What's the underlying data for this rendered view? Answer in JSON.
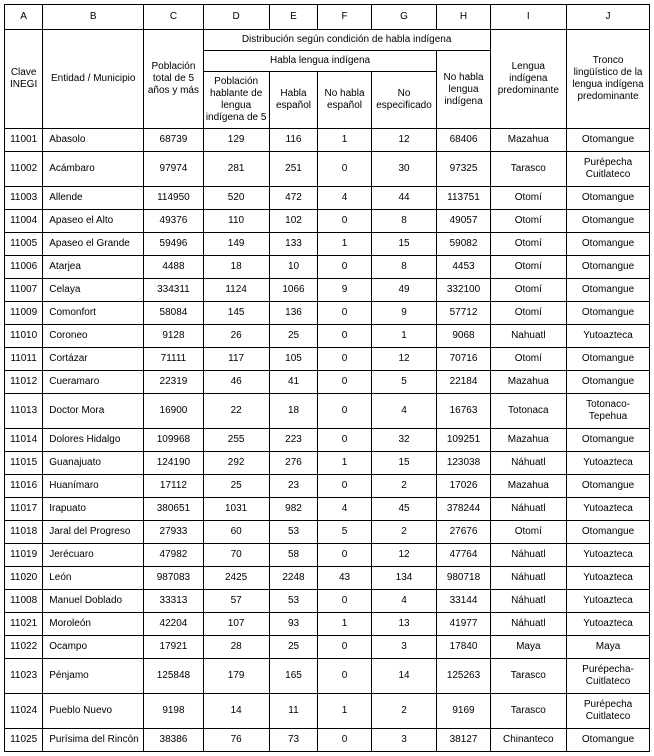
{
  "header": {
    "letters": [
      "A",
      "B",
      "C",
      "D",
      "E",
      "F",
      "G",
      "H",
      "I",
      "J"
    ],
    "labels": {
      "A": "Clave INEGI",
      "B": "Entidad / Municipio",
      "C": "Población total de 5 años y más",
      "group_DH": "Distribución según condición de habla indígena",
      "group_DG": "Habla lengua indígena",
      "D": "Población hablante de lengua indígena de 5",
      "E": "Habla español",
      "F": "No habla español",
      "G": "No especificado",
      "H": "No habla lengua indígena",
      "I": "Lengua indígena predominante",
      "J": "Tronco lingüístico de la lengua indígena predominante"
    }
  },
  "rows": [
    {
      "A": "11001",
      "B": "Abasolo",
      "C": "68739",
      "D": "129",
      "E": "116",
      "F": "1",
      "G": "12",
      "H": "68406",
      "I": "Mazahua",
      "J": "Otomangue"
    },
    {
      "A": "11002",
      "B": "Acámbaro",
      "C": "97974",
      "D": "281",
      "E": "251",
      "F": "0",
      "G": "30",
      "H": "97325",
      "I": "Tarasco",
      "J": "Purépecha Cuitlateco"
    },
    {
      "A": "11003",
      "B": "Allende",
      "C": "114950",
      "D": "520",
      "E": "472",
      "F": "4",
      "G": "44",
      "H": "113751",
      "I": "Otomí",
      "J": "Otomangue"
    },
    {
      "A": "11004",
      "B": "Apaseo el Alto",
      "C": "49376",
      "D": "110",
      "E": "102",
      "F": "0",
      "G": "8",
      "H": "49057",
      "I": "Otomí",
      "J": "Otomangue"
    },
    {
      "A": "11005",
      "B": "Apaseo el Grande",
      "C": "59496",
      "D": "149",
      "E": "133",
      "F": "1",
      "G": "15",
      "H": "59082",
      "I": "Otomí",
      "J": "Otomangue"
    },
    {
      "A": "11006",
      "B": "Atarjea",
      "C": "4488",
      "D": "18",
      "E": "10",
      "F": "0",
      "G": "8",
      "H": "4453",
      "I": "Otomí",
      "J": "Otomangue"
    },
    {
      "A": "11007",
      "B": "Celaya",
      "C": "334311",
      "D": "1124",
      "E": "1066",
      "F": "9",
      "G": "49",
      "H": "332100",
      "I": "Otomí",
      "J": "Otomangue"
    },
    {
      "A": "11009",
      "B": "Comonfort",
      "C": "58084",
      "D": "145",
      "E": "136",
      "F": "0",
      "G": "9",
      "H": "57712",
      "I": "Otomí",
      "J": "Otomangue"
    },
    {
      "A": "11010",
      "B": "Coroneo",
      "C": "9128",
      "D": "26",
      "E": "25",
      "F": "0",
      "G": "1",
      "H": "9068",
      "I": "Nahuatl",
      "J": "Yutoazteca"
    },
    {
      "A": "11011",
      "B": "Cortázar",
      "C": "71111",
      "D": "117",
      "E": "105",
      "F": "0",
      "G": "12",
      "H": "70716",
      "I": "Otomí",
      "J": "Otomangue"
    },
    {
      "A": "11012",
      "B": "Cueramaro",
      "C": "22319",
      "D": "46",
      "E": "41",
      "F": "0",
      "G": "5",
      "H": "22184",
      "I": "Mazahua",
      "J": "Otomangue"
    },
    {
      "A": "11013",
      "B": "Doctor Mora",
      "C": "16900",
      "D": "22",
      "E": "18",
      "F": "0",
      "G": "4",
      "H": "16763",
      "I": "Totonaca",
      "J": "Totonaco-Tepehua"
    },
    {
      "A": "11014",
      "B": "Dolores Hidalgo",
      "C": "109968",
      "D": "255",
      "E": "223",
      "F": "0",
      "G": "32",
      "H": "109251",
      "I": "Mazahua",
      "J": "Otomangue"
    },
    {
      "A": "11015",
      "B": "Guanajuato",
      "C": "124190",
      "D": "292",
      "E": "276",
      "F": "1",
      "G": "15",
      "H": "123038",
      "I": "Náhuatl",
      "J": "Yutoazteca"
    },
    {
      "A": "11016",
      "B": "Huanímaro",
      "C": "17112",
      "D": "25",
      "E": "23",
      "F": "0",
      "G": "2",
      "H": "17026",
      "I": "Mazahua",
      "J": "Otomangue"
    },
    {
      "A": "11017",
      "B": "Irapuato",
      "C": "380651",
      "D": "1031",
      "E": "982",
      "F": "4",
      "G": "45",
      "H": "378244",
      "I": "Náhuatl",
      "J": "Yutoazteca"
    },
    {
      "A": "11018",
      "B": "Jaral del Progreso",
      "C": "27933",
      "D": "60",
      "E": "53",
      "F": "5",
      "G": "2",
      "H": "27676",
      "I": "Otomí",
      "J": "Otomangue"
    },
    {
      "A": "11019",
      "B": "Jerécuaro",
      "C": "47982",
      "D": "70",
      "E": "58",
      "F": "0",
      "G": "12",
      "H": "47764",
      "I": "Náhuatl",
      "J": "Yutoazteca"
    },
    {
      "A": "11020",
      "B": "León",
      "C": "987083",
      "D": "2425",
      "E": "2248",
      "F": "43",
      "G": "134",
      "H": "980718",
      "I": "Náhuatl",
      "J": "Yutoazteca"
    },
    {
      "A": "11008",
      "B": "Manuel Doblado",
      "C": "33313",
      "D": "57",
      "E": "53",
      "F": "0",
      "G": "4",
      "H": "33144",
      "I": "Náhuatl",
      "J": "Yutoazteca"
    },
    {
      "A": "11021",
      "B": "Moroleón",
      "C": "42204",
      "D": "107",
      "E": "93",
      "F": "1",
      "G": "13",
      "H": "41977",
      "I": "Náhuatl",
      "J": "Yutoazteca"
    },
    {
      "A": "11022",
      "B": "Ocampo",
      "C": "17921",
      "D": "28",
      "E": "25",
      "F": "0",
      "G": "3",
      "H": "17840",
      "I": "Maya",
      "J": "Maya"
    },
    {
      "A": "11023",
      "B": "Pénjamo",
      "C": "125848",
      "D": "179",
      "E": "165",
      "F": "0",
      "G": "14",
      "H": "125263",
      "I": "Tarasco",
      "J": "Purépecha-Cuitlateco"
    },
    {
      "A": "11024",
      "B": "Pueblo Nuevo",
      "C": "9198",
      "D": "14",
      "E": "11",
      "F": "1",
      "G": "2",
      "H": "9169",
      "I": "Tarasco",
      "J": "Purépecha Cuitlateco"
    },
    {
      "A": "11025",
      "B": "Purísima del Rincón",
      "C": "38386",
      "D": "76",
      "E": "73",
      "F": "0",
      "G": "3",
      "H": "38127",
      "I": "Chinanteco",
      "J": "Otomangue"
    }
  ],
  "style": {
    "font_family": "Arial",
    "font_size_pt": 8,
    "border_color": "#000000",
    "background_color": "#ffffff",
    "text_color": "#000000"
  }
}
